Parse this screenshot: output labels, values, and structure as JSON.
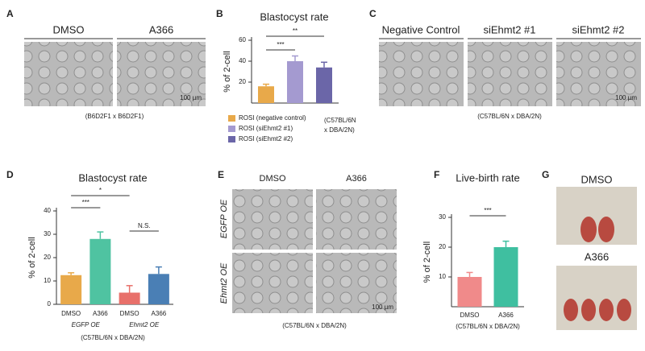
{
  "panels": {
    "A": {
      "letter": "A",
      "labels": [
        "DMSO",
        "A366"
      ],
      "scale": "100 µm",
      "note": "(B6D2F1 x B6D2F1)"
    },
    "C": {
      "letter": "C",
      "labels": [
        "Negative Control",
        "siEhmt2 #1",
        "siEhmt2 #2"
      ],
      "scale": "100 µm",
      "note": "(C57BL/6N x DBA/2N)"
    },
    "E": {
      "letter": "E",
      "labels": [
        "DMSO",
        "A366"
      ],
      "rows": [
        "EGFP OE",
        "Ehmt2 OE"
      ],
      "scale": "100 µm",
      "note": "(C57BL/6N x DBA/2N)"
    },
    "G": {
      "letter": "G",
      "labels": [
        "DMSO",
        "A366"
      ]
    },
    "B": {
      "letter": "B"
    },
    "D": {
      "letter": "D"
    },
    "F": {
      "letter": "F"
    }
  },
  "chart_data": [
    {
      "type": "bar",
      "title": "Blastocyst rate",
      "ylabel": "% of 2-cell",
      "categories": [
        null,
        null,
        null
      ],
      "values": [
        16,
        40,
        34
      ],
      "errors": [
        2,
        5,
        5
      ],
      "colors": [
        "#e8a94a",
        "#a49ad0",
        "#6b66a8"
      ],
      "legend": [
        "ROSI (negative control)",
        "ROSI (siEhmt2 #1)",
        "ROSI (siEhmt2 #2)"
      ],
      "annotations": [
        "***",
        "**"
      ],
      "note": [
        "(C57BL/6N",
        "x DBA/2N)"
      ],
      "ylim": [
        0,
        60
      ],
      "yticks": [
        20,
        40,
        60
      ]
    },
    {
      "type": "bar",
      "title": "Blastocyst rate",
      "ylabel": "% of 2-cell",
      "categories": [
        "DMSO",
        "A366",
        "DMSO",
        "A366"
      ],
      "values": [
        12.5,
        28,
        5,
        13
      ],
      "errors": [
        1,
        3,
        3,
        3
      ],
      "colors": [
        "#e8a94a",
        "#4fc3a1",
        "#e8706a",
        "#4a7fb5"
      ],
      "groups": [
        "EGFP OE",
        "Ehmt2 OE"
      ],
      "annotations": [
        "***",
        "*",
        "N.S."
      ],
      "note": [
        "(C57BL/6N x DBA/2N)"
      ],
      "ylim": [
        0,
        40
      ],
      "yticks": [
        0,
        10,
        20,
        30,
        40
      ]
    },
    {
      "type": "bar",
      "title": "Live-birth rate",
      "ylabel": "% of 2-cell",
      "categories": [
        "DMSO",
        "A366"
      ],
      "values": [
        10,
        20
      ],
      "errors": [
        1.5,
        2
      ],
      "colors": [
        "#f08a8a",
        "#3fbfa0"
      ],
      "annotations": [
        "***"
      ],
      "note": [
        "(C57BL/6N x DBA/2N)"
      ],
      "ylim": [
        0,
        30
      ],
      "yticks": [
        10,
        20,
        30
      ]
    }
  ]
}
